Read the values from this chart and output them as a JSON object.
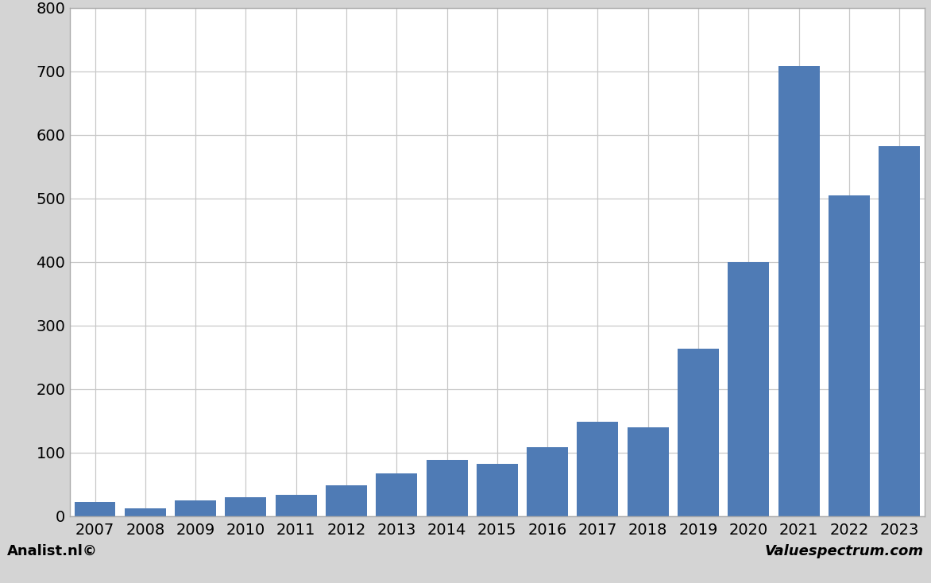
{
  "categories": [
    "2007",
    "2008",
    "2009",
    "2010",
    "2011",
    "2012",
    "2013",
    "2014",
    "2015",
    "2016",
    "2017",
    "2018",
    "2019",
    "2020",
    "2021",
    "2022",
    "2023"
  ],
  "values": [
    22,
    12,
    25,
    30,
    33,
    48,
    67,
    88,
    82,
    108,
    148,
    140,
    263,
    400,
    708,
    505,
    582
  ],
  "bar_color": "#4f7bb5",
  "ylim": [
    0,
    800
  ],
  "yticks": [
    0,
    100,
    200,
    300,
    400,
    500,
    600,
    700,
    800
  ],
  "plot_bg_color": "#ffffff",
  "footer_bg_color": "#d4d4d4",
  "footer_left": "Analist.nl©",
  "footer_right": "Valuespectrum.com",
  "grid_color": "#c8c8c8",
  "spine_color": "#aaaaaa",
  "tick_label_fontsize": 14,
  "bar_width": 0.82
}
